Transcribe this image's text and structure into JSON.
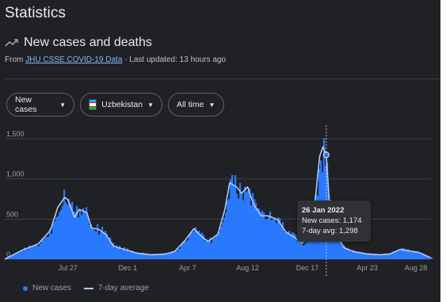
{
  "page": {
    "title": "Statistics"
  },
  "header": {
    "chart_title": "New cases and deaths",
    "source_prefix": "From",
    "source_link": "JHU CSSE COVID-19 Data",
    "updated": "· Last updated: 13 hours ago",
    "trend_icon": "trending-up-icon"
  },
  "filters": {
    "metric": "New cases",
    "country": "Uzbekistan",
    "range": "All time",
    "caret_icon": "caret-down-icon"
  },
  "tooltip": {
    "date": "26 Jan 2022",
    "new_cases": "New cases: 1,174",
    "avg": "7-day avg: 1,298"
  },
  "legend": {
    "bars": "New cases",
    "line": "7-day average"
  },
  "colors": {
    "background": "#202124",
    "bar": "#2979ff",
    "avg_line": "#aecbfa",
    "grid": "#3c4043",
    "text_muted": "#9aa0a6"
  },
  "chart_data": {
    "type": "area",
    "title": "New cases and deaths",
    "ylim": [
      0,
      1500
    ],
    "y_ticks": [
      0,
      500,
      1000,
      1500
    ],
    "y_tick_labels": [
      "0",
      "500",
      "1,000",
      "1,500"
    ],
    "x_tick_labels": [
      "Jul 27",
      "Dec 1",
      "Apr 7",
      "Aug 12",
      "Dec 17",
      "Apr 23",
      "Aug 28"
    ],
    "x_tick_dates": [
      "2020-07-27",
      "2020-12-01",
      "2021-04-07",
      "2021-08-12",
      "2021-12-17",
      "2022-04-23",
      "2022-08-28"
    ],
    "x_range": [
      "2020-03-15",
      "2022-09-05"
    ],
    "grid": true,
    "legend_position": "bottom-left",
    "highlight": {
      "date": "2022-01-26",
      "new_cases": 1174,
      "avg": 1298
    },
    "series": [
      {
        "name": "New cases",
        "dates": [
          "2020-03-15",
          "2020-04-20",
          "2020-05-25",
          "2020-06-20",
          "2020-07-05",
          "2020-07-20",
          "2020-07-27",
          "2020-08-10",
          "2020-08-20",
          "2020-09-05",
          "2020-09-15",
          "2020-10-01",
          "2020-10-15",
          "2020-11-01",
          "2020-12-01",
          "2020-12-20",
          "2021-01-20",
          "2021-02-20",
          "2021-03-10",
          "2021-04-01",
          "2021-04-20",
          "2021-05-05",
          "2021-05-20",
          "2021-06-10",
          "2021-06-25",
          "2021-07-05",
          "2021-07-20",
          "2021-07-30",
          "2021-08-12",
          "2021-08-25",
          "2021-09-10",
          "2021-09-25",
          "2021-10-15",
          "2021-11-01",
          "2021-11-20",
          "2021-12-05",
          "2021-12-17",
          "2021-12-28",
          "2022-01-05",
          "2022-01-12",
          "2022-01-19",
          "2022-01-26",
          "2022-02-02",
          "2022-02-10",
          "2022-02-20",
          "2022-03-05",
          "2022-03-25",
          "2022-04-23",
          "2022-05-20",
          "2022-06-10",
          "2022-07-01",
          "2022-07-20",
          "2022-08-10",
          "2022-08-28",
          "2022-09-05"
        ],
        "values": [
          0,
          120,
          200,
          380,
          660,
          880,
          800,
          560,
          700,
          620,
          400,
          390,
          330,
          170,
          120,
          80,
          60,
          70,
          100,
          240,
          400,
          300,
          230,
          330,
          640,
          980,
          920,
          840,
          930,
          700,
          560,
          560,
          510,
          360,
          280,
          210,
          250,
          480,
          900,
          1300,
          1420,
          1174,
          680,
          470,
          280,
          150,
          100,
          70,
          60,
          70,
          130,
          110,
          90,
          40,
          20
        ]
      },
      {
        "name": "7-day average",
        "dates": [
          "2020-03-15",
          "2020-04-20",
          "2020-05-25",
          "2020-06-20",
          "2020-07-05",
          "2020-07-20",
          "2020-07-27",
          "2020-08-10",
          "2020-08-20",
          "2020-09-05",
          "2020-09-15",
          "2020-10-01",
          "2020-10-15",
          "2020-11-01",
          "2020-12-01",
          "2020-12-20",
          "2021-01-20",
          "2021-02-20",
          "2021-03-10",
          "2021-04-01",
          "2021-04-20",
          "2021-05-05",
          "2021-05-20",
          "2021-06-10",
          "2021-06-25",
          "2021-07-05",
          "2021-07-20",
          "2021-07-30",
          "2021-08-12",
          "2021-08-25",
          "2021-09-10",
          "2021-09-25",
          "2021-10-15",
          "2021-11-01",
          "2021-11-20",
          "2021-12-05",
          "2021-12-17",
          "2021-12-28",
          "2022-01-05",
          "2022-01-12",
          "2022-01-19",
          "2022-01-26",
          "2022-02-02",
          "2022-02-10",
          "2022-02-20",
          "2022-03-05",
          "2022-03-25",
          "2022-04-23",
          "2022-05-20",
          "2022-06-10",
          "2022-07-01",
          "2022-07-20",
          "2022-08-10",
          "2022-08-28",
          "2022-09-05"
        ],
        "values": [
          0,
          110,
          190,
          360,
          640,
          770,
          740,
          520,
          620,
          580,
          390,
          370,
          310,
          160,
          110,
          75,
          55,
          65,
          95,
          230,
          380,
          290,
          220,
          310,
          620,
          950,
          900,
          820,
          900,
          680,
          540,
          540,
          490,
          340,
          270,
          200,
          240,
          460,
          880,
          1280,
          1400,
          1298,
          660,
          450,
          270,
          140,
          95,
          65,
          55,
          65,
          120,
          105,
          85,
          38,
          18
        ]
      }
    ]
  }
}
